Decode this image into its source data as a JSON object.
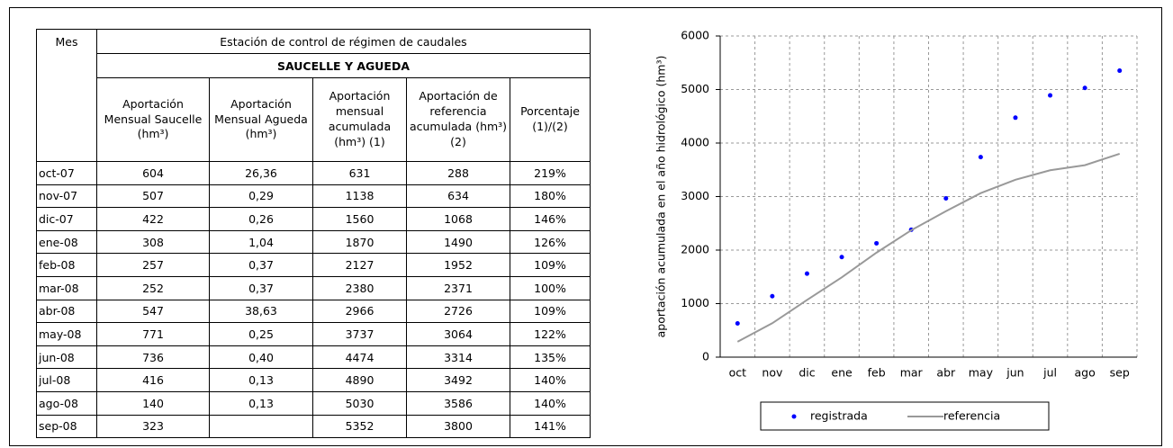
{
  "table": {
    "group": "Estación de control de régimen de caudales",
    "station": "SAUCELLE Y AGUEDA",
    "columns": [
      "Mes",
      "Aportación Mensual Saucelle (hm³)",
      "Aportación Mensual Agueda (hm³)",
      "Aportación mensual acumulada (hm³) (1)",
      "Aportación de referencia acumulada (hm³) (2)",
      "Porcentaje (1)/(2)"
    ],
    "rows": [
      [
        "oct-07",
        "604",
        "26,36",
        "631",
        "288",
        "219%"
      ],
      [
        "nov-07",
        "507",
        "0,29",
        "1138",
        "634",
        "180%"
      ],
      [
        "dic-07",
        "422",
        "0,26",
        "1560",
        "1068",
        "146%"
      ],
      [
        "ene-08",
        "308",
        "1,04",
        "1870",
        "1490",
        "126%"
      ],
      [
        "feb-08",
        "257",
        "0,37",
        "2127",
        "1952",
        "109%"
      ],
      [
        "mar-08",
        "252",
        "0,37",
        "2380",
        "2371",
        "100%"
      ],
      [
        "abr-08",
        "547",
        "38,63",
        "2966",
        "2726",
        "109%"
      ],
      [
        "may-08",
        "771",
        "0,25",
        "3737",
        "3064",
        "122%"
      ],
      [
        "jun-08",
        "736",
        "0,40",
        "4474",
        "3314",
        "135%"
      ],
      [
        "jul-08",
        "416",
        "0,13",
        "4890",
        "3492",
        "140%"
      ],
      [
        "ago-08",
        "140",
        "0,13",
        "5030",
        "3586",
        "140%"
      ],
      [
        "sep-08",
        "323",
        null,
        "5352",
        "3800",
        "141%"
      ]
    ]
  },
  "chart_data": {
    "type": "line",
    "y_label": "aportación acumulada en el año hidrológico (hm³)",
    "categories": [
      "oct",
      "nov",
      "dic",
      "ene",
      "feb",
      "mar",
      "abr",
      "may",
      "jun",
      "jul",
      "ago",
      "sep"
    ],
    "series": [
      {
        "name": "registrada",
        "color": "#0000ff",
        "mode": "markers",
        "values": [
          631,
          1138,
          1560,
          1870,
          2127,
          2380,
          2966,
          3737,
          4474,
          4890,
          5030,
          5352
        ]
      },
      {
        "name": "referencia",
        "color": "#999999",
        "mode": "lines",
        "values": [
          288,
          634,
          1068,
          1490,
          1952,
          2371,
          2726,
          3064,
          3314,
          3492,
          3586,
          3800
        ]
      }
    ],
    "ylim": [
      0,
      6000
    ],
    "yticks": [
      0,
      1000,
      2000,
      3000,
      4000,
      5000,
      6000
    ],
    "grid": true
  }
}
